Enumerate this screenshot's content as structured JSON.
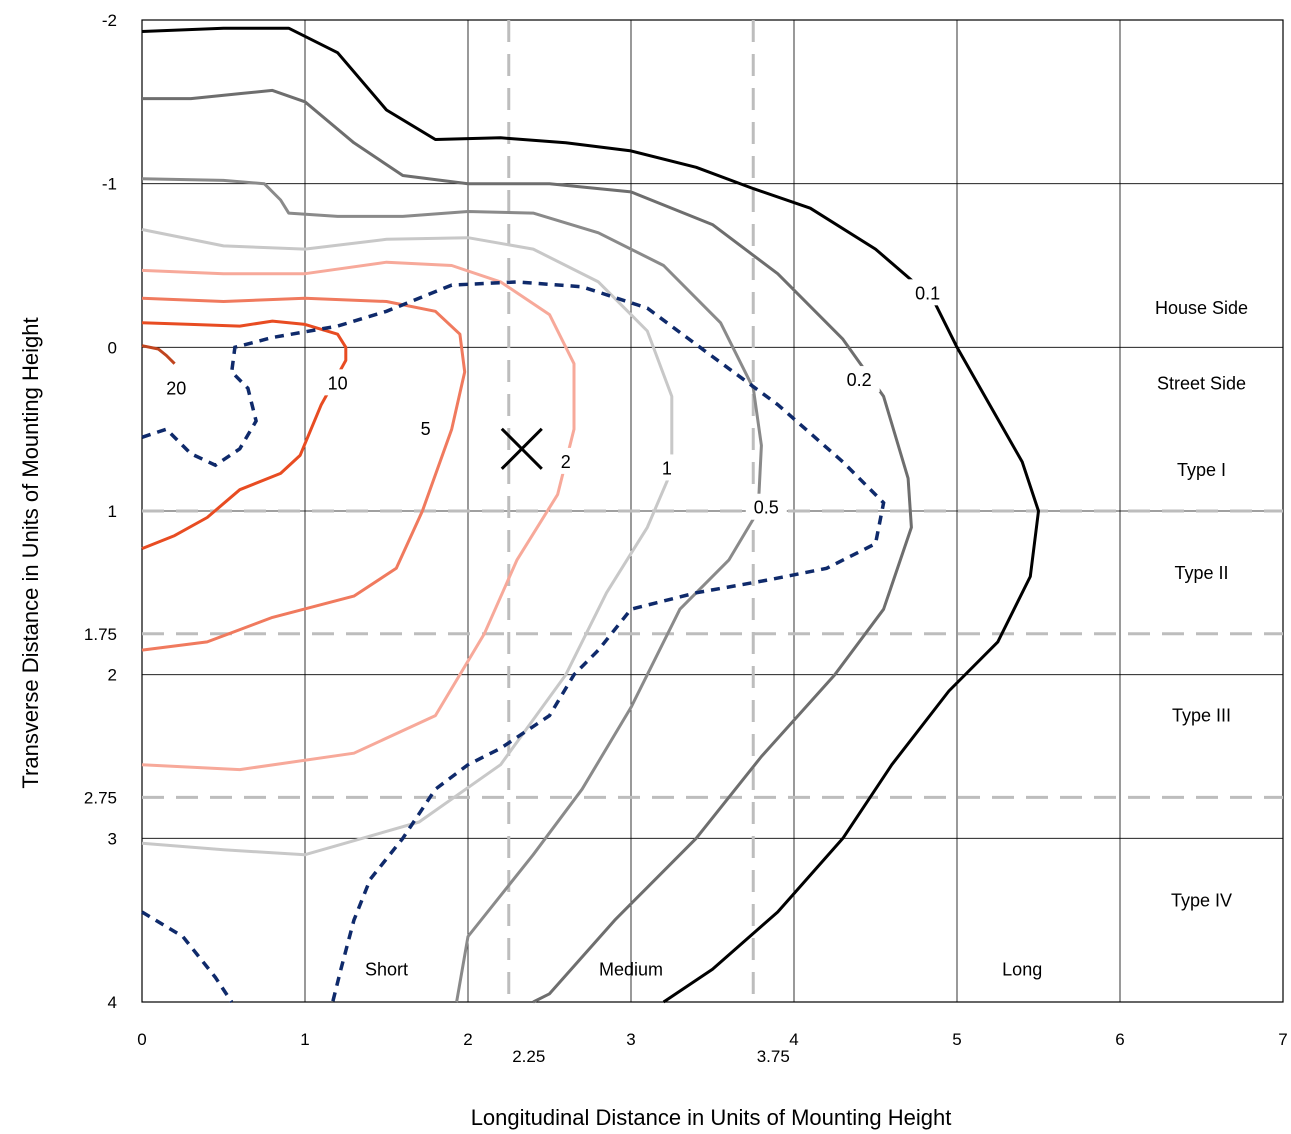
{
  "chart_data": {
    "type": "contour",
    "xlabel": "Longitudinal Distance in Units of Mounting Height",
    "ylabel": "Transverse Distance in Units of Mounting Height",
    "xlim": [
      0,
      7
    ],
    "ylim": [
      -2,
      4
    ],
    "y_axis_direction": "down",
    "grid": true,
    "x_ticks": [
      "0",
      "1",
      "2",
      "3",
      "4",
      "5",
      "6",
      "7"
    ],
    "x_extra_ticks": [
      "2.25",
      "3.75"
    ],
    "y_ticks": [
      "-2",
      "-1",
      "0",
      "1",
      "1.75",
      "2",
      "2.75",
      "3",
      "4"
    ],
    "reference_lines": {
      "vertical": [
        2.25,
        3.75
      ],
      "horizontal": [
        1,
        1.75,
        2.75
      ]
    },
    "region_labels": {
      "longitudinal": [
        {
          "text": "Short",
          "x": 1.5,
          "y": 3.8
        },
        {
          "text": "Medium",
          "x": 3.0,
          "y": 3.8
        },
        {
          "text": "Long",
          "x": 5.4,
          "y": 3.8
        }
      ],
      "transverse": [
        {
          "text": "House Side",
          "x": 6.5,
          "y": -0.24
        },
        {
          "text": "Street Side",
          "x": 6.5,
          "y": 0.22
        },
        {
          "text": "Type I",
          "x": 6.5,
          "y": 0.75
        },
        {
          "text": "Type II",
          "x": 6.5,
          "y": 1.38
        },
        {
          "text": "Type III",
          "x": 6.5,
          "y": 2.25
        },
        {
          "text": "Type IV",
          "x": 6.5,
          "y": 3.38
        }
      ]
    },
    "max_candela_marker": {
      "x": 2.33,
      "y": 0.62
    },
    "contours": [
      {
        "label": "20",
        "color": "#c0451f",
        "label_pos": [
          0.21,
          0.25
        ],
        "points": [
          [
            0,
            -0.01
          ],
          [
            0.1,
            0.01
          ],
          [
            0.15,
            0.05
          ],
          [
            0.2,
            0.1
          ]
        ]
      },
      {
        "label": "10",
        "color": "#e84c22",
        "label_pos": [
          1.2,
          0.22
        ],
        "points": [
          [
            0,
            -0.15
          ],
          [
            0.3,
            -0.14
          ],
          [
            0.6,
            -0.13
          ],
          [
            0.8,
            -0.16
          ],
          [
            1.0,
            -0.14
          ],
          [
            1.2,
            -0.08
          ],
          [
            1.25,
            0.0
          ],
          [
            1.25,
            0.08
          ],
          [
            1.1,
            0.35
          ],
          [
            0.97,
            0.66
          ],
          [
            0.85,
            0.77
          ],
          [
            0.6,
            0.87
          ],
          [
            0.4,
            1.04
          ],
          [
            0.2,
            1.15
          ],
          [
            0,
            1.23
          ]
        ]
      },
      {
        "label": "5",
        "color": "#f07a5e",
        "label_pos": [
          1.74,
          0.5
        ],
        "points": [
          [
            0,
            -0.3
          ],
          [
            0.5,
            -0.28
          ],
          [
            1.0,
            -0.3
          ],
          [
            1.5,
            -0.28
          ],
          [
            1.8,
            -0.22
          ],
          [
            1.95,
            -0.08
          ],
          [
            1.98,
            0.15
          ],
          [
            1.9,
            0.5
          ],
          [
            1.72,
            1.0
          ],
          [
            1.56,
            1.35
          ],
          [
            1.3,
            1.52
          ],
          [
            0.8,
            1.65
          ],
          [
            0.4,
            1.8
          ],
          [
            0,
            1.85
          ]
        ]
      },
      {
        "label": "2",
        "color": "#f7a99a",
        "label_pos": [
          2.6,
          0.7
        ],
        "points": [
          [
            0,
            -0.47
          ],
          [
            0.5,
            -0.45
          ],
          [
            1.0,
            -0.45
          ],
          [
            1.5,
            -0.52
          ],
          [
            1.9,
            -0.5
          ],
          [
            2.2,
            -0.4
          ],
          [
            2.5,
            -0.2
          ],
          [
            2.65,
            0.1
          ],
          [
            2.65,
            0.5
          ],
          [
            2.55,
            0.9
          ],
          [
            2.3,
            1.3
          ],
          [
            2.1,
            1.75
          ],
          [
            1.8,
            2.25
          ],
          [
            1.3,
            2.48
          ],
          [
            0.6,
            2.58
          ],
          [
            0,
            2.55
          ]
        ]
      },
      {
        "label": "1",
        "color": "#c8c8c8",
        "label_pos": [
          3.22,
          0.74
        ],
        "points": [
          [
            0,
            -0.72
          ],
          [
            0.5,
            -0.62
          ],
          [
            1.0,
            -0.6
          ],
          [
            1.5,
            -0.66
          ],
          [
            2.0,
            -0.67
          ],
          [
            2.4,
            -0.6
          ],
          [
            2.8,
            -0.4
          ],
          [
            3.1,
            -0.1
          ],
          [
            3.25,
            0.3
          ],
          [
            3.25,
            0.75
          ],
          [
            3.1,
            1.1
          ],
          [
            2.85,
            1.5
          ],
          [
            2.6,
            2.0
          ],
          [
            2.2,
            2.55
          ],
          [
            1.7,
            2.9
          ],
          [
            1.0,
            3.1
          ],
          [
            0.5,
            3.07
          ],
          [
            0,
            3.03
          ]
        ]
      },
      {
        "label": "0.5",
        "color": "#8a8a8a",
        "label_pos": [
          3.83,
          0.98
        ],
        "points": [
          [
            0,
            -1.03
          ],
          [
            0.5,
            -1.02
          ],
          [
            0.75,
            -1.0
          ],
          [
            0.85,
            -0.9
          ],
          [
            0.9,
            -0.82
          ],
          [
            1.2,
            -0.8
          ],
          [
            1.6,
            -0.8
          ],
          [
            2.0,
            -0.83
          ],
          [
            2.4,
            -0.82
          ],
          [
            2.8,
            -0.7
          ],
          [
            3.2,
            -0.5
          ],
          [
            3.55,
            -0.15
          ],
          [
            3.75,
            0.25
          ],
          [
            3.8,
            0.6
          ],
          [
            3.78,
            1.0
          ],
          [
            3.6,
            1.3
          ],
          [
            3.3,
            1.6
          ],
          [
            3.0,
            2.2
          ],
          [
            2.7,
            2.7
          ],
          [
            2.4,
            3.1
          ],
          [
            2.0,
            3.6
          ],
          [
            1.93,
            4.0
          ]
        ]
      },
      {
        "label": "0.2",
        "color": "#6e6e6e",
        "label_pos": [
          4.4,
          0.2
        ],
        "points": [
          [
            0,
            -1.52
          ],
          [
            0.3,
            -1.52
          ],
          [
            0.6,
            -1.55
          ],
          [
            0.8,
            -1.57
          ],
          [
            1.0,
            -1.5
          ],
          [
            1.3,
            -1.25
          ],
          [
            1.6,
            -1.05
          ],
          [
            2.0,
            -1.0
          ],
          [
            2.5,
            -1.0
          ],
          [
            3.0,
            -0.95
          ],
          [
            3.5,
            -0.75
          ],
          [
            3.9,
            -0.45
          ],
          [
            4.3,
            -0.05
          ],
          [
            4.55,
            0.3
          ],
          [
            4.7,
            0.8
          ],
          [
            4.72,
            1.1
          ],
          [
            4.55,
            1.6
          ],
          [
            4.25,
            2.0
          ],
          [
            3.8,
            2.5
          ],
          [
            3.4,
            3.0
          ],
          [
            2.9,
            3.5
          ],
          [
            2.5,
            3.95
          ],
          [
            2.4,
            4.0
          ]
        ]
      },
      {
        "label": "0.1",
        "color": "#000000",
        "label_pos": [
          4.82,
          -0.33
        ],
        "points": [
          [
            0,
            -1.93
          ],
          [
            0.5,
            -1.95
          ],
          [
            0.9,
            -1.95
          ],
          [
            1.2,
            -1.8
          ],
          [
            1.5,
            -1.45
          ],
          [
            1.8,
            -1.27
          ],
          [
            2.2,
            -1.28
          ],
          [
            2.6,
            -1.25
          ],
          [
            3.0,
            -1.2
          ],
          [
            3.4,
            -1.1
          ],
          [
            3.75,
            -0.97
          ],
          [
            4.1,
            -0.85
          ],
          [
            4.5,
            -0.6
          ],
          [
            4.85,
            -0.3
          ],
          [
            5.0,
            0.0
          ],
          [
            5.2,
            0.35
          ],
          [
            5.4,
            0.7
          ],
          [
            5.5,
            1.0
          ],
          [
            5.45,
            1.4
          ],
          [
            5.25,
            1.8
          ],
          [
            4.95,
            2.1
          ],
          [
            4.6,
            2.55
          ],
          [
            4.3,
            3.0
          ],
          [
            3.9,
            3.45
          ],
          [
            3.5,
            3.8
          ],
          [
            3.2,
            4.0
          ]
        ]
      }
    ],
    "dashed_contour": {
      "color": "#0f2a6b",
      "segments": [
        [
          [
            0,
            0.55
          ],
          [
            0.15,
            0.5
          ],
          [
            0.3,
            0.65
          ],
          [
            0.45,
            0.72
          ],
          [
            0.6,
            0.62
          ],
          [
            0.7,
            0.45
          ],
          [
            0.65,
            0.25
          ],
          [
            0.55,
            0.15
          ],
          [
            0.57,
            0.0
          ],
          [
            0.8,
            -0.06
          ],
          [
            1.2,
            -0.13
          ],
          [
            1.5,
            -0.22
          ],
          [
            1.9,
            -0.38
          ],
          [
            2.3,
            -0.4
          ],
          [
            2.7,
            -0.37
          ],
          [
            3.1,
            -0.24
          ],
          [
            3.45,
            0.02
          ],
          [
            3.9,
            0.35
          ],
          [
            4.3,
            0.7
          ],
          [
            4.55,
            0.95
          ],
          [
            4.5,
            1.2
          ],
          [
            4.2,
            1.35
          ],
          [
            3.85,
            1.42
          ],
          [
            3.4,
            1.5
          ],
          [
            3.0,
            1.6
          ],
          [
            2.8,
            1.85
          ],
          [
            2.65,
            2.0
          ],
          [
            2.5,
            2.25
          ],
          [
            2.2,
            2.45
          ],
          [
            2.0,
            2.55
          ],
          [
            1.8,
            2.7
          ],
          [
            1.6,
            3.0
          ],
          [
            1.4,
            3.25
          ],
          [
            1.3,
            3.5
          ],
          [
            1.22,
            3.8
          ],
          [
            1.17,
            4.0
          ]
        ],
        [
          [
            0,
            3.45
          ],
          [
            0.25,
            3.6
          ],
          [
            0.45,
            3.85
          ],
          [
            0.55,
            4.0
          ]
        ]
      ]
    }
  }
}
